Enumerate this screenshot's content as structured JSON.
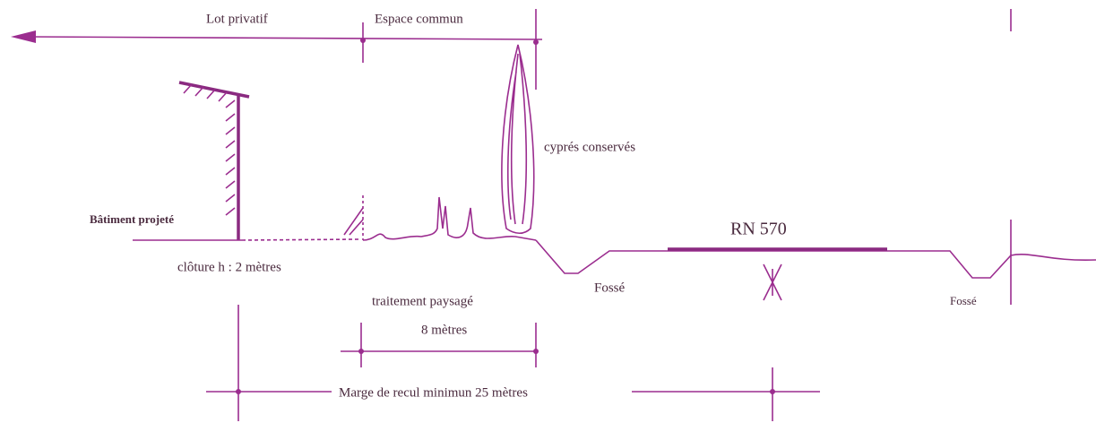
{
  "labels": {
    "lot_privatif": "Lot privatif",
    "espace_commun": "Espace commun",
    "cypres": "cyprés conservés",
    "batiment": "Bâtiment projeté",
    "cloture": "clôture  h : 2 mètres",
    "route": "RN 570",
    "fosse_1": "Fossé",
    "fosse_2": "Fossé",
    "traitement": "traitement paysagé",
    "largeur": "8 mètres",
    "marge": "Marge de recul minimun 25 mètres"
  }
}
